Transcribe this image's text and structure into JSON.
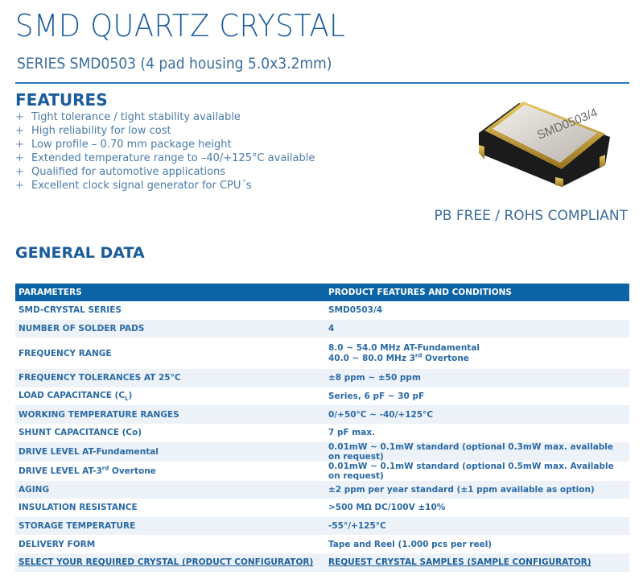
{
  "header": {
    "title": "SMD QUARTZ CRYSTAL",
    "subtitle": "SERIES SMD0503 (4 pad housing 5.0x3.2mm)"
  },
  "features": {
    "heading": "FEATURES",
    "bullet": "+",
    "items": [
      "Tight tolerance / tight stability available",
      "High reliability for low cost",
      "Low profile – 0.70 mm package height",
      "Extended temperature range to –40/+125°C available",
      "Qualified for automotive applications",
      "Excellent clock signal generator for CPU´s"
    ]
  },
  "product_image": {
    "label": "SMD0503/4"
  },
  "compliance": "PB FREE / ROHS COMPLIANT",
  "general": {
    "heading": "GENERAL DATA",
    "columns": [
      "PARAMETERS",
      "PRODUCT FEATURES AND CONDITIONS"
    ],
    "rows": [
      [
        "SMD-CRYSTAL SERIES",
        "SMD0503/4"
      ],
      [
        "NUMBER OF SOLDER PADS",
        "4"
      ],
      [
        "FREQUENCY RANGE",
        "8.0 ~ 54.0 MHz AT-Fundamental",
        "40.0 ~  80.0 MHz 3rd Overtone"
      ],
      [
        "FREQUENCY TOLERANCES  AT 25°C",
        "±8 ppm ~ ±50 ppm"
      ],
      [
        "LOAD CAPACITANCE (CL)",
        "Series, 6 pF ~ 30 pF"
      ],
      [
        "WORKING TEMPERATURE RANGES",
        "0/+50°C ~ -40/+125°C"
      ],
      [
        "SHUNT CAPACITANCE (Co)",
        "7 pF max."
      ],
      [
        "DRIVE LEVEL AT-Fundamental",
        "0.01mW ~  0.1mW standard (optional 0.3mW max. available on request)"
      ],
      [
        "DRIVE LEVEL AT-3rd Overtone",
        "0.01mW ~  0.1mW standard (optional 0.5mW max. Available on request)"
      ],
      [
        "AGING",
        "±2 ppm per year standard (±1 ppm available as option)"
      ],
      [
        "INSULATION RESISTANCE",
        ">500 MΩ DC/100V ±10%"
      ],
      [
        "STORAGE TEMPERATURE",
        "-55°/+125°C"
      ],
      [
        "DELIVERY FORM",
        "Tape and Reel (1.000 pcs per reel)"
      ]
    ],
    "links": [
      "SELECT YOUR REQUIRED CRYSTAL (PRODUCT CONFIGURATOR)",
      "REQUEST CRYSTAL SAMPLES (SAMPLE CONFIGURATOR)"
    ]
  },
  "colors": {
    "brand_blue": "#0c63a6",
    "row_alt": "#edf2f8"
  }
}
